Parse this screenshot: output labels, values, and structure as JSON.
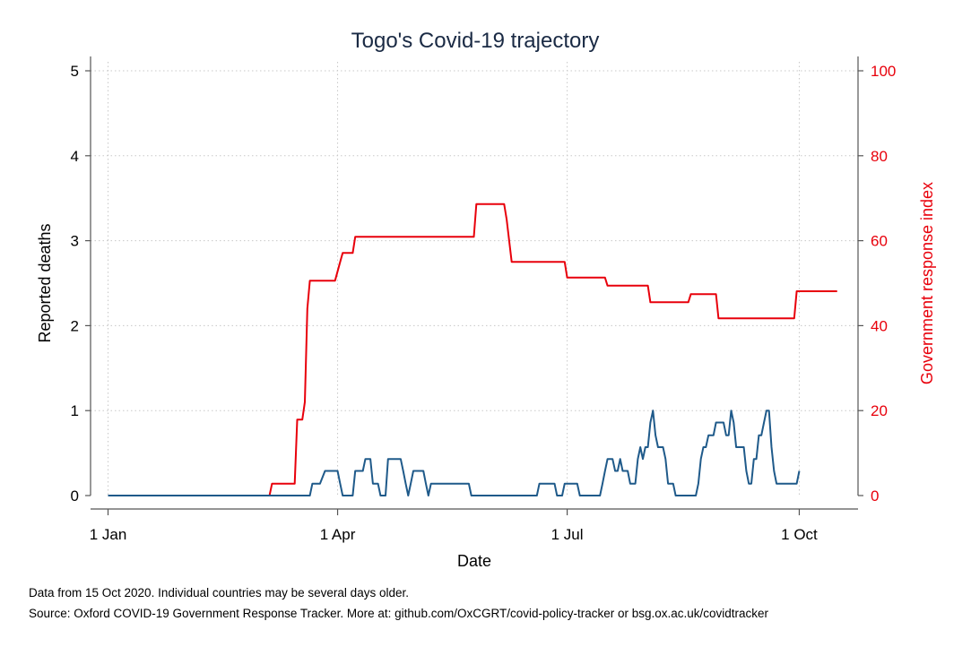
{
  "chart_data": {
    "type": "line",
    "title": "Togo's Covid-19 trajectory",
    "xlabel": "Date",
    "ylabel": "Reported deaths",
    "y2label": "Government response index",
    "xlim": [
      0,
      302
    ],
    "ylim": [
      0,
      5
    ],
    "y2lim": [
      0,
      100
    ],
    "x_ticks": [
      {
        "day": 0,
        "label": "1 Jan"
      },
      {
        "day": 91,
        "label": "1 Apr"
      },
      {
        "day": 182,
        "label": "1 Jul"
      },
      {
        "day": 274,
        "label": "1 Oct"
      }
    ],
    "y_ticks": [
      0,
      1,
      2,
      3,
      4,
      5
    ],
    "y2_ticks": [
      0,
      20,
      40,
      60,
      80,
      100
    ],
    "grid": true,
    "series": [
      {
        "axis": "right",
        "color": "#e8000b",
        "points": [
          [
            0,
            0
          ],
          [
            64,
            0
          ],
          [
            65,
            2.8
          ],
          [
            74,
            2.8
          ],
          [
            75,
            17.9
          ],
          [
            77,
            17.9
          ],
          [
            78,
            22
          ],
          [
            79,
            44
          ],
          [
            80,
            50.6
          ],
          [
            90,
            50.6
          ],
          [
            92,
            55
          ],
          [
            93,
            57.1
          ],
          [
            97,
            57.1
          ],
          [
            98,
            60.9
          ],
          [
            145,
            60.9
          ],
          [
            146,
            68.6
          ],
          [
            157,
            68.6
          ],
          [
            158,
            65
          ],
          [
            160,
            55
          ],
          [
            181,
            55
          ],
          [
            182,
            51.3
          ],
          [
            197,
            51.3
          ],
          [
            198,
            49.4
          ],
          [
            214,
            49.4
          ],
          [
            215,
            45.5
          ],
          [
            230,
            45.5
          ],
          [
            231,
            47.4
          ],
          [
            241,
            47.4
          ],
          [
            242,
            41.7
          ],
          [
            272,
            41.7
          ],
          [
            273,
            48.1
          ],
          [
            289,
            48.1
          ]
        ]
      },
      {
        "axis": "left",
        "color": "#1f5a8a",
        "points": [
          [
            0,
            0
          ],
          [
            75,
            0
          ],
          [
            80,
            0
          ],
          [
            81,
            0.14
          ],
          [
            84,
            0.14
          ],
          [
            86,
            0.29
          ],
          [
            91,
            0.29
          ],
          [
            92,
            0.14
          ],
          [
            93,
            0
          ],
          [
            97,
            0
          ],
          [
            98,
            0.29
          ],
          [
            101,
            0.29
          ],
          [
            102,
            0.43
          ],
          [
            104,
            0.43
          ],
          [
            105,
            0.14
          ],
          [
            107,
            0.14
          ],
          [
            108,
            0
          ],
          [
            110,
            0
          ],
          [
            111,
            0.43
          ],
          [
            116,
            0.43
          ],
          [
            117,
            0.29
          ],
          [
            118,
            0.14
          ],
          [
            119,
            0
          ],
          [
            120,
            0.14
          ],
          [
            121,
            0.29
          ],
          [
            125,
            0.29
          ],
          [
            126,
            0.14
          ],
          [
            127,
            0
          ],
          [
            128,
            0.14
          ],
          [
            143,
            0.14
          ],
          [
            144,
            0
          ],
          [
            170,
            0
          ],
          [
            171,
            0.14
          ],
          [
            177,
            0.14
          ],
          [
            178,
            0
          ],
          [
            180,
            0
          ],
          [
            181,
            0.14
          ],
          [
            186,
            0.14
          ],
          [
            187,
            0
          ],
          [
            195,
            0
          ],
          [
            196,
            0.14
          ],
          [
            197,
            0.29
          ],
          [
            198,
            0.43
          ],
          [
            200,
            0.43
          ],
          [
            201,
            0.29
          ],
          [
            202,
            0.29
          ],
          [
            203,
            0.43
          ],
          [
            204,
            0.29
          ],
          [
            206,
            0.29
          ],
          [
            207,
            0.14
          ],
          [
            209,
            0.14
          ],
          [
            210,
            0.43
          ],
          [
            211,
            0.57
          ],
          [
            212,
            0.43
          ],
          [
            213,
            0.57
          ],
          [
            214,
            0.57
          ],
          [
            215,
            0.86
          ],
          [
            216,
            1.0
          ],
          [
            217,
            0.71
          ],
          [
            218,
            0.57
          ],
          [
            220,
            0.57
          ],
          [
            221,
            0.43
          ],
          [
            222,
            0.14
          ],
          [
            224,
            0.14
          ],
          [
            225,
            0
          ],
          [
            233,
            0
          ],
          [
            234,
            0.14
          ],
          [
            235,
            0.43
          ],
          [
            236,
            0.57
          ],
          [
            237,
            0.57
          ],
          [
            238,
            0.71
          ],
          [
            240,
            0.71
          ],
          [
            241,
            0.86
          ],
          [
            244,
            0.86
          ],
          [
            245,
            0.71
          ],
          [
            246,
            0.71
          ],
          [
            247,
            1.0
          ],
          [
            248,
            0.86
          ],
          [
            249,
            0.57
          ],
          [
            252,
            0.57
          ],
          [
            253,
            0.29
          ],
          [
            254,
            0.14
          ],
          [
            255,
            0.14
          ],
          [
            256,
            0.43
          ],
          [
            257,
            0.43
          ],
          [
            258,
            0.71
          ],
          [
            259,
            0.71
          ],
          [
            260,
            0.86
          ],
          [
            261,
            1.0
          ],
          [
            262,
            1.0
          ],
          [
            263,
            0.57
          ],
          [
            264,
            0.29
          ],
          [
            265,
            0.14
          ],
          [
            273,
            0.14
          ],
          [
            274,
            0.29
          ]
        ]
      }
    ]
  },
  "footnotes": {
    "line1": "Data from 15 Oct 2020. Individual countries may be several days older.",
    "line2": "Source: Oxford COVID-19 Government Response Tracker. More at: github.com/OxCGRT/covid-policy-tracker or bsg.ox.ac.uk/covidtracker"
  }
}
